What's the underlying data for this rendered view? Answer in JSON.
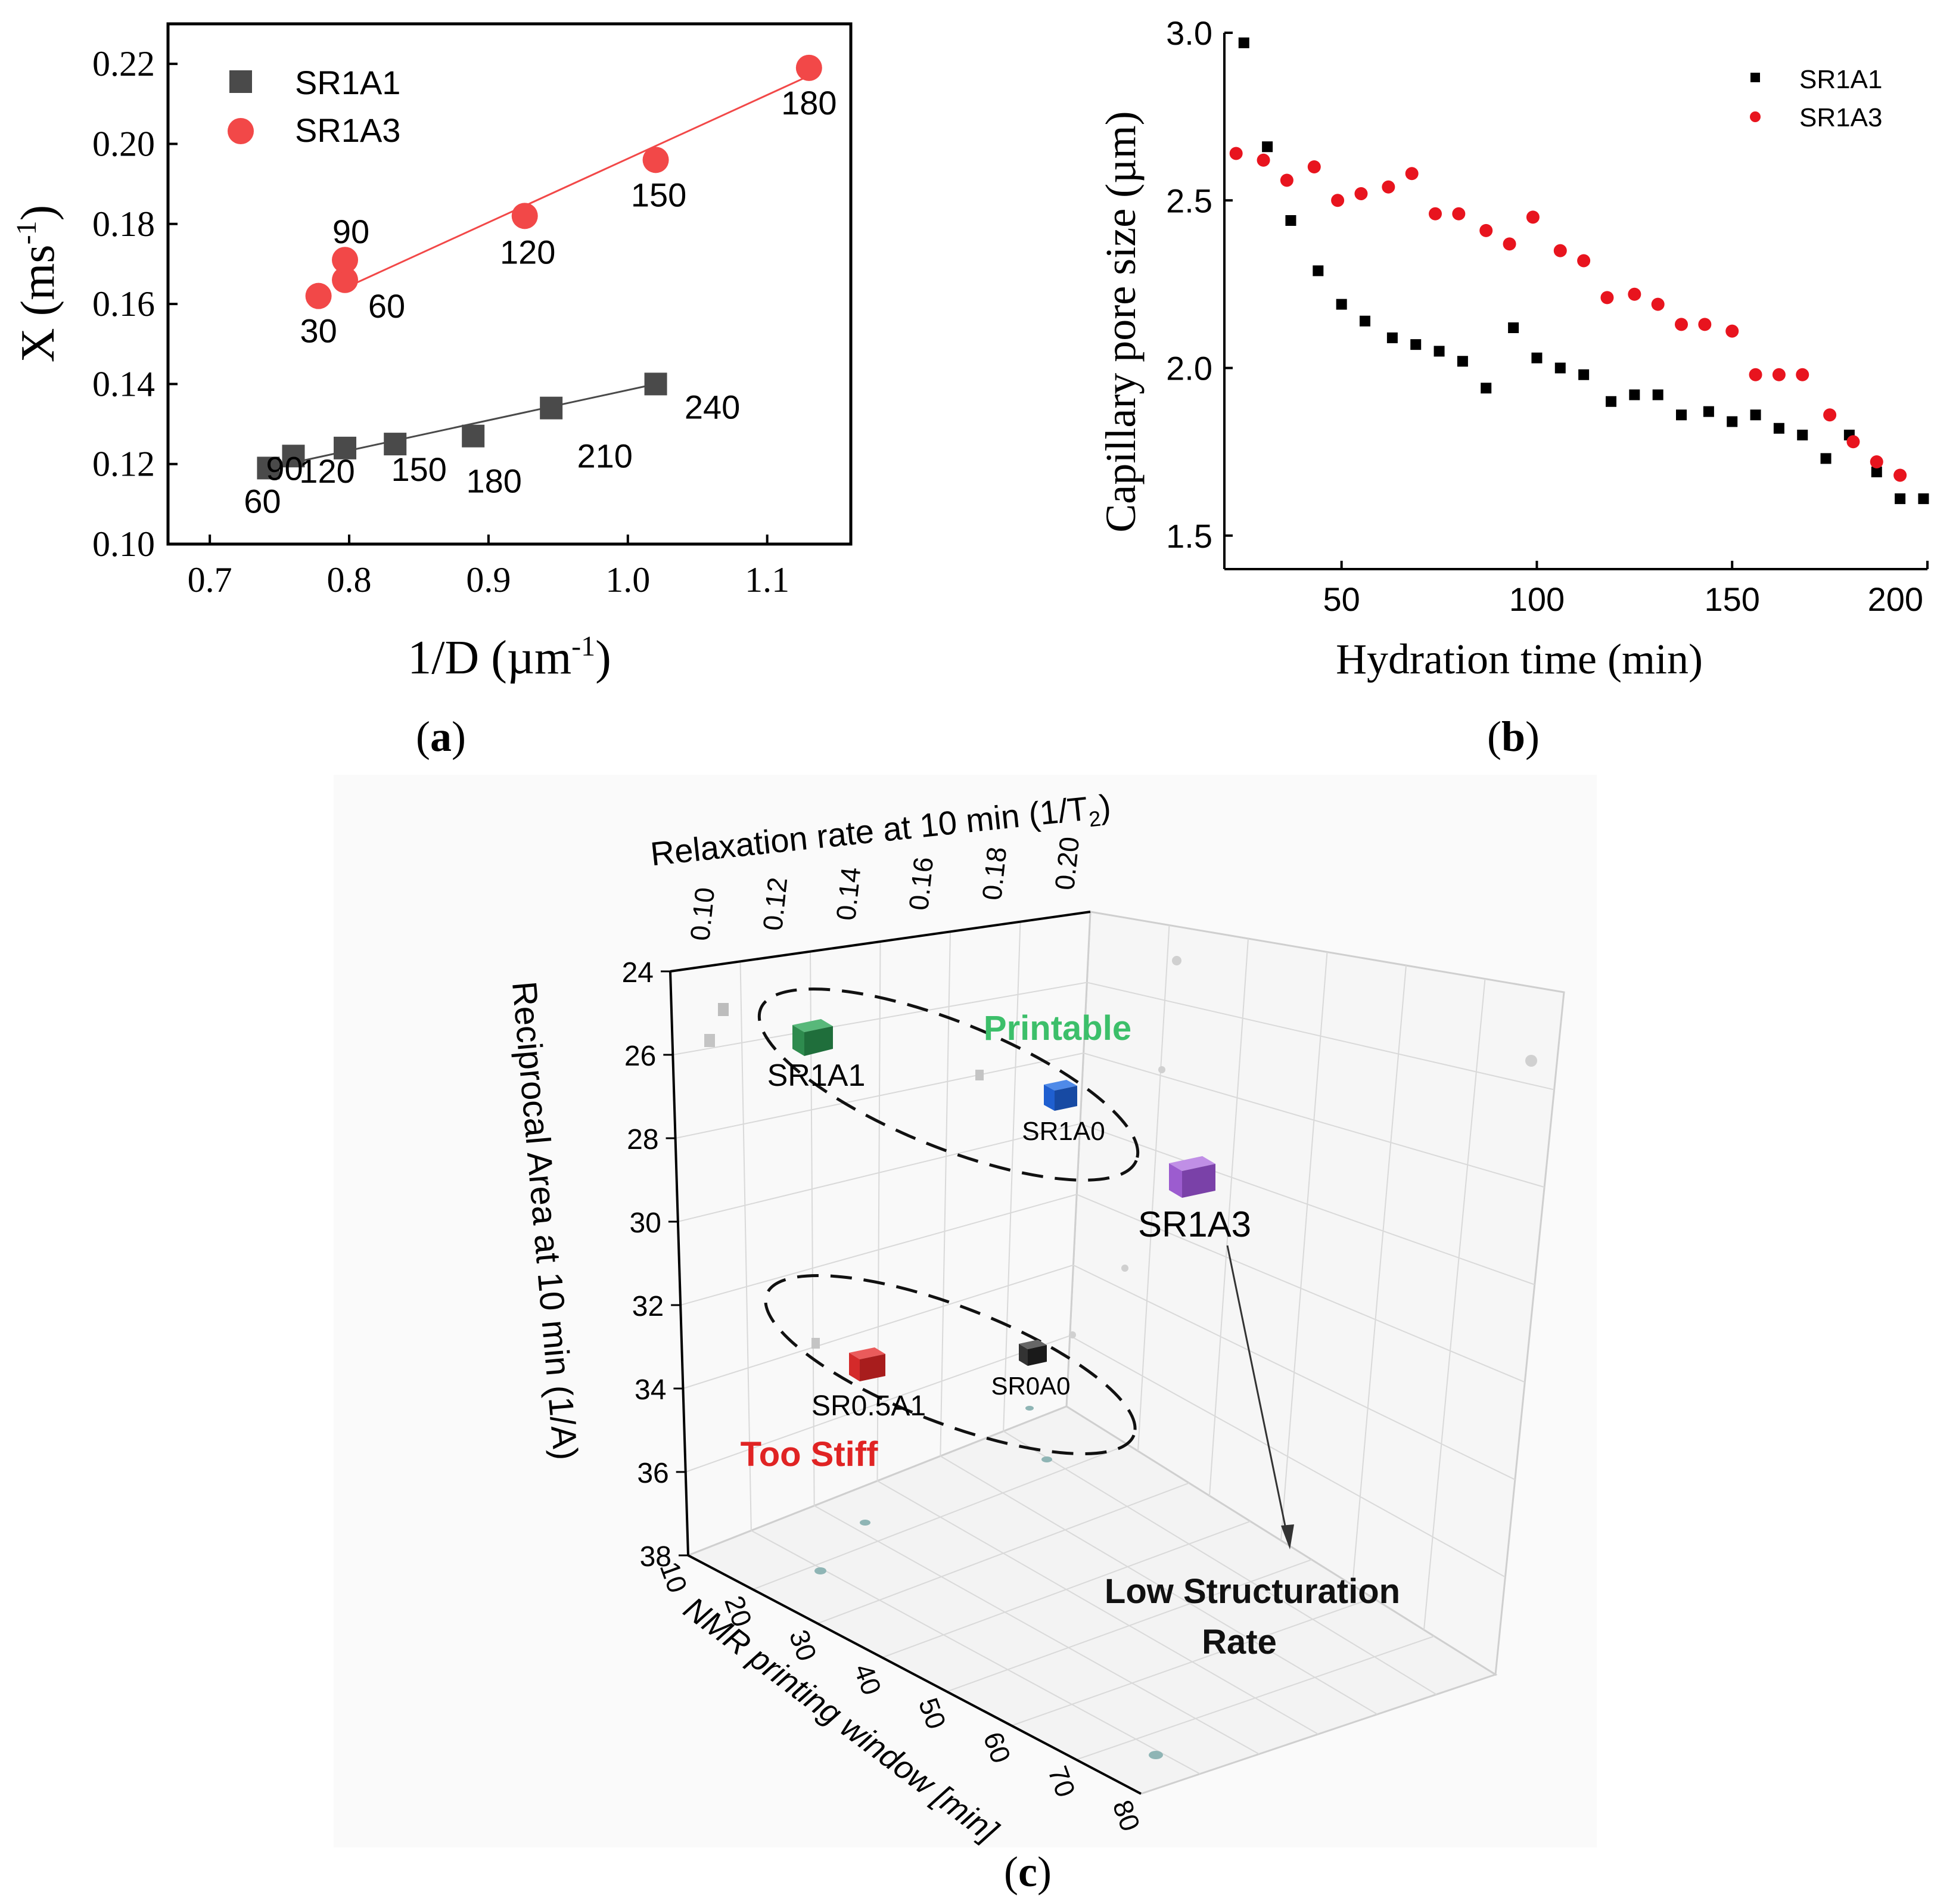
{
  "chart_data": [
    {
      "id": "a",
      "type": "scatter",
      "panel_label": "(a)",
      "xlabel": "1/D (µm⁻¹)",
      "ylabel": "X (ms⁻¹)",
      "xlim": [
        0.67,
        1.16
      ],
      "ylim": [
        0.1,
        0.23
      ],
      "x_ticks": [
        0.7,
        0.8,
        0.9,
        1.0,
        1.1
      ],
      "x_tick_labels": [
        "0.7",
        "0.8",
        "0.9",
        "1.0",
        "1.1"
      ],
      "y_ticks": [
        0.1,
        0.12,
        0.14,
        0.16,
        0.18,
        0.2,
        0.22
      ],
      "y_tick_labels": [
        "0.10",
        "0.12",
        "0.14",
        "0.16",
        "0.18",
        "0.20",
        "0.22"
      ],
      "legend": [
        "SR1A1",
        "SR1A3"
      ],
      "series": [
        {
          "name": "SR1A1",
          "color": "#4a4a4a",
          "marker": "square",
          "x": [
            0.742,
            0.76,
            0.797,
            0.833,
            0.889,
            0.945,
            1.02
          ],
          "y": [
            0.119,
            0.122,
            0.124,
            0.125,
            0.127,
            0.134,
            0.14
          ],
          "point_labels": [
            "60",
            "90",
            "120",
            "150",
            "180",
            "210",
            "240"
          ],
          "fit": {
            "x": [
              0.742,
              1.02
            ],
            "y": [
              0.119,
              0.14
            ]
          }
        },
        {
          "name": "SR1A3",
          "color": "#f24848",
          "marker": "circle",
          "x": [
            0.778,
            0.797,
            0.797,
            0.926,
            1.02,
            1.13
          ],
          "y": [
            0.162,
            0.166,
            0.171,
            0.182,
            0.196,
            0.219
          ],
          "point_labels": [
            "30",
            "60",
            "90",
            "120",
            "150",
            "180"
          ],
          "fit": {
            "x": [
              0.797,
              1.13
            ],
            "y": [
              0.164,
              0.217
            ]
          }
        }
      ]
    },
    {
      "id": "b",
      "type": "scatter",
      "panel_label": "(b)",
      "xlabel": "Hydration time (min)",
      "ylabel": "Capillary pore size (µm)",
      "xlim": [
        20,
        200
      ],
      "ylim": [
        1.4,
        3.0
      ],
      "x_ticks": [
        50,
        100,
        150,
        200
      ],
      "x_tick_labels": [
        "50",
        "100",
        "150",
        "200"
      ],
      "y_ticks": [
        1.5,
        2.0,
        2.5,
        3.0
      ],
      "y_tick_labels": [
        "1.5",
        "2.0",
        "2.5",
        "3.0"
      ],
      "legend": [
        "SR1A1",
        "SR1A3"
      ],
      "series": [
        {
          "name": "SR1A1",
          "color": "#000000",
          "marker": "square",
          "x": [
            25,
            31,
            37,
            44,
            50,
            56,
            63,
            69,
            75,
            81,
            87,
            94,
            100,
            106,
            112,
            119,
            125,
            131,
            137,
            144,
            150,
            156,
            162,
            168,
            174,
            180,
            187,
            193,
            199
          ],
          "y": [
            2.97,
            2.66,
            2.44,
            2.29,
            2.19,
            2.14,
            2.09,
            2.07,
            2.05,
            2.02,
            1.94,
            2.12,
            2.03,
            2.0,
            1.98,
            1.9,
            1.92,
            1.92,
            1.86,
            1.87,
            1.84,
            1.86,
            1.82,
            1.8,
            1.73,
            1.8,
            1.69,
            1.61,
            1.61
          ]
        },
        {
          "name": "SR1A3",
          "color": "#e8141e",
          "marker": "circle",
          "x": [
            23,
            30,
            36,
            43,
            49,
            55,
            62,
            68,
            74,
            80,
            87,
            93,
            99,
            106,
            112,
            118,
            125,
            131,
            137,
            143,
            150,
            156,
            162,
            168,
            175,
            181,
            187,
            193
          ],
          "y": [
            2.64,
            2.62,
            2.56,
            2.6,
            2.5,
            2.52,
            2.54,
            2.58,
            2.46,
            2.46,
            2.41,
            2.37,
            2.45,
            2.35,
            2.32,
            2.21,
            2.22,
            2.19,
            2.13,
            2.13,
            2.11,
            1.98,
            1.98,
            1.98,
            1.86,
            1.78,
            1.72,
            1.68
          ]
        }
      ]
    },
    {
      "id": "c",
      "type": "scatter3d",
      "panel_label": "(c)",
      "x_axis_label": "NMR printing window [min]",
      "y_axis_label": "Relaxation rate at 10 min (1/T",
      "y_axis_label_sub": "2",
      "y_axis_label_close": ")",
      "z_axis_label": "Reciprocal Area at 10 min (1/A)",
      "x_tick_labels": [
        "10",
        "20",
        "30",
        "40",
        "50",
        "60",
        "70",
        "80"
      ],
      "y_tick_labels": [
        "0.10",
        "0.12",
        "0.14",
        "0.16",
        "0.18",
        "0.20"
      ],
      "z_tick_labels": [
        "24",
        "26",
        "28",
        "30",
        "32",
        "34",
        "36",
        "38"
      ],
      "points": [
        {
          "name": "SR1A1",
          "color": "#2e8b4e"
        },
        {
          "name": "SR1A0",
          "color": "#1f5fd0"
        },
        {
          "name": "SR1A3",
          "color": "#9c5ccf"
        },
        {
          "name": "SR0.5A1",
          "color": "#d42a2a"
        },
        {
          "name": "SR0A0",
          "color": "#333333"
        }
      ],
      "annotations": {
        "printable": "Printable",
        "too_stiff": "Too Stiff",
        "low_rate_line1": "Low Structuration",
        "low_rate_line2": "Rate"
      },
      "colors": {
        "printable": "#3cbf6a",
        "too_stiff": "#e02424"
      }
    }
  ]
}
